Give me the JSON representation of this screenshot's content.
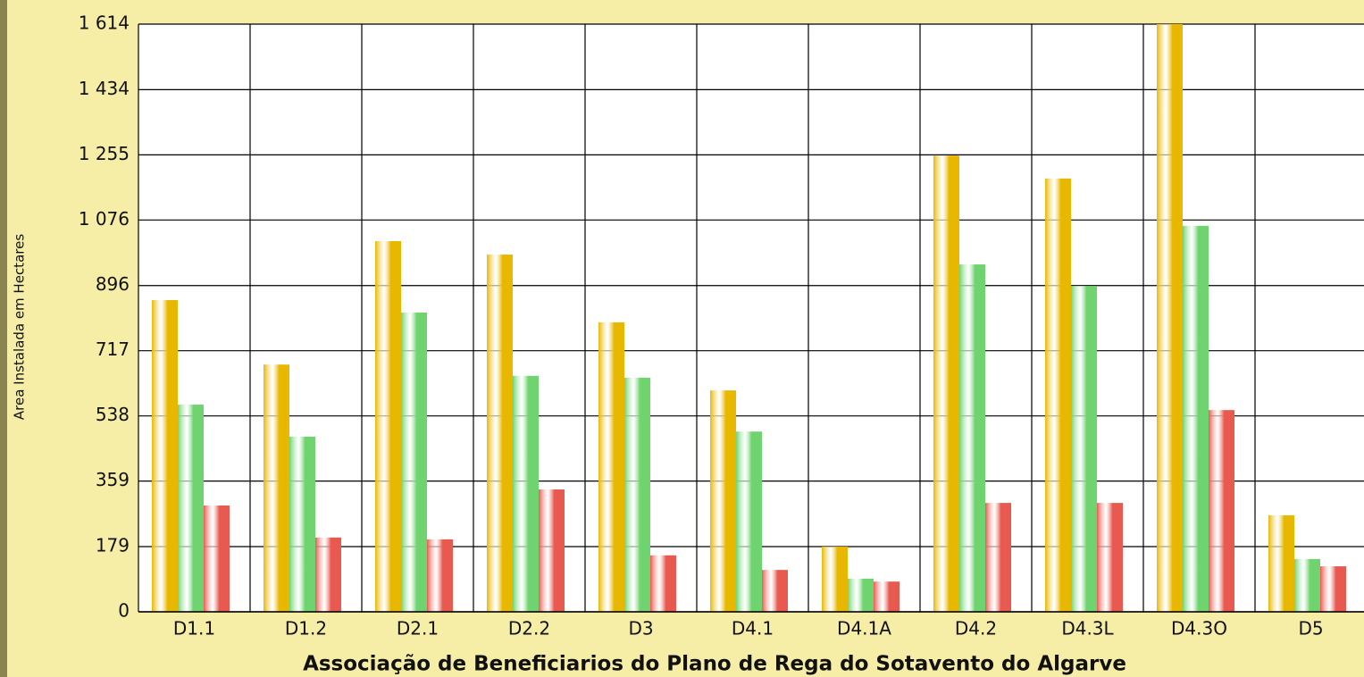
{
  "chart_data": {
    "type": "bar",
    "x_label": "Associação de Beneficiarios do Plano de Rega do Sotavento do Algarve",
    "y_label": "Area Instalada em Hectares",
    "categories": [
      "D1.1",
      "D1.2",
      "D2.1",
      "D2.2",
      "D3",
      "D4.1",
      "D4.1A",
      "D4.2",
      "D4.3L",
      "D4.3O",
      "D5"
    ],
    "series": [
      {
        "color": "#e8b800",
        "values": [
          856,
          679,
          1018,
          981,
          795,
          608,
          179,
          1253,
          1190,
          1614,
          265
        ]
      },
      {
        "color": "#6fd46f",
        "values": [
          569,
          481,
          822,
          648,
          643,
          495,
          91,
          954,
          895,
          1060,
          145
        ]
      },
      {
        "color": "#e85a50",
        "values": [
          292,
          204,
          199,
          336,
          155,
          115,
          83,
          299,
          299,
          554,
          125
        ]
      }
    ],
    "ylim": [
      0,
      1614
    ],
    "yticks": [
      0,
      179,
      359,
      538,
      717,
      896,
      {
        "value": 1076,
        "label": "1 076"
      },
      {
        "value": 1255,
        "label": "1 255"
      },
      {
        "value": 1434,
        "label": "1 434"
      },
      {
        "value": 1614,
        "label": "1 614"
      }
    ],
    "grid": true
  }
}
